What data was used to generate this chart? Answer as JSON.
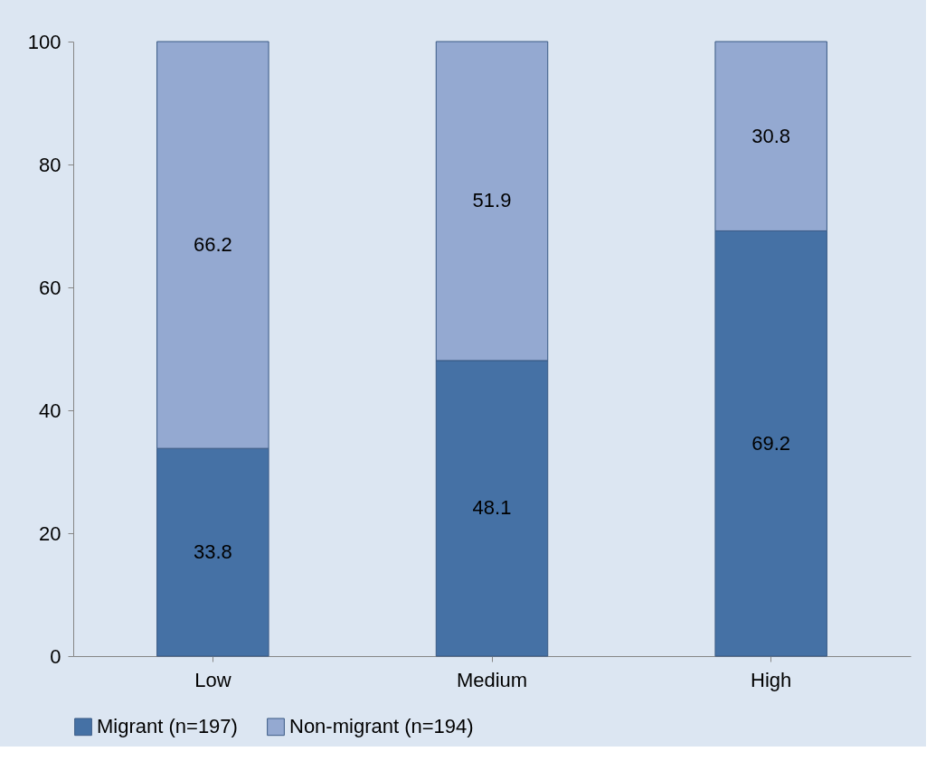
{
  "chart_data": {
    "type": "bar",
    "stacked": true,
    "categories": [
      "Low",
      "Medium",
      "High"
    ],
    "series": [
      {
        "name": "Migrant (n=197)",
        "color": "#4571a5",
        "values": [
          33.8,
          48.1,
          69.2
        ]
      },
      {
        "name": "Non-migrant (n=194)",
        "color": "#94a9d1",
        "values": [
          66.2,
          51.9,
          30.8
        ]
      }
    ],
    "ylim": [
      0,
      100
    ],
    "yticks": [
      0,
      20,
      40,
      60,
      80,
      100
    ],
    "data_labels": true,
    "legend": "bottom",
    "grid": false
  }
}
